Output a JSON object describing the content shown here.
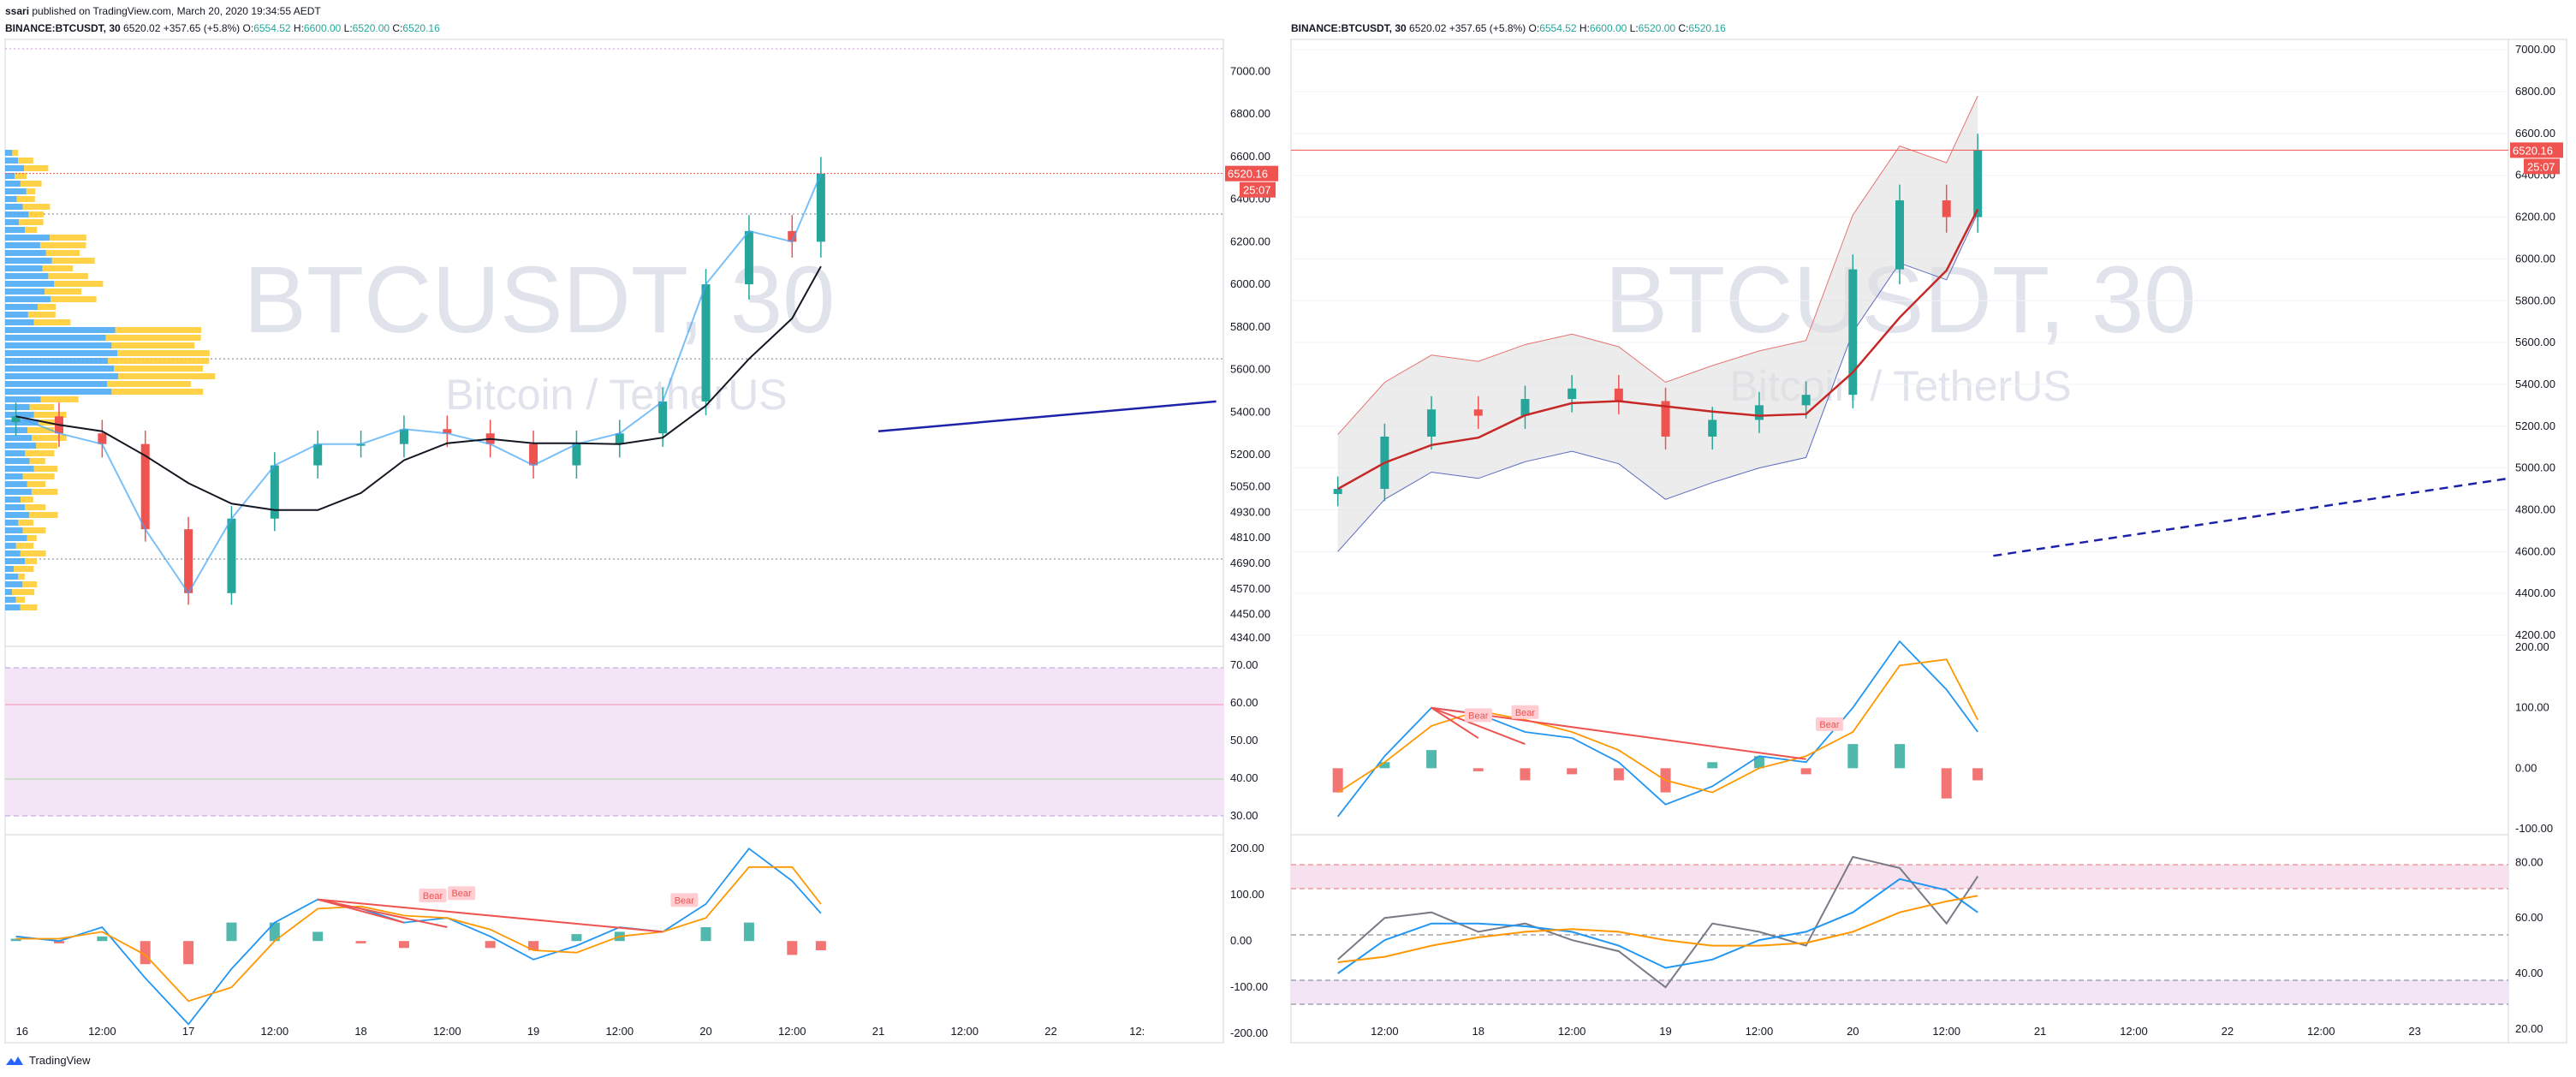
{
  "publish_line": {
    "author": "ssari",
    "text": "published on TradingView.com, March 20, 2020 19:34:55 AEDT"
  },
  "brand": {
    "name": "TradingView",
    "icon": "tradingview-logo-icon"
  },
  "colors": {
    "up": "#26a69a",
    "down": "#ef5350",
    "price_tag": "#ef5350",
    "ma_black": "#131722",
    "trend_blue": "#1e22aa",
    "macd_line": "#2196f3",
    "signal_line": "#ff9800",
    "rsi_band": "#f3e5f5",
    "bb_fill": "#e0e0e0",
    "volume_profile_up": "#42a5f5",
    "volume_profile_down": "#ffca28"
  },
  "left_panel": {
    "header": {
      "symbol": "BINANCE:BTCUSDT, 30",
      "last": "6520.02",
      "change": "+357.65 (+5.8%)",
      "ohlc": [
        {
          "label": "O:",
          "value": "6554.52"
        },
        {
          "label": "H:",
          "value": "6600.00"
        },
        {
          "label": "L:",
          "value": "6520.00"
        },
        {
          "label": "C:",
          "value": "6520.16"
        }
      ]
    },
    "watermark": {
      "title": "BTCUSDT, 30",
      "subtitle": "Bitcoin / TetherUS"
    },
    "price_tag": "6520.16",
    "countdown": "25:07",
    "price_axis": [
      "7000.00",
      "6800.00",
      "6600.00",
      "6400.00",
      "6200.00",
      "6000.00",
      "5800.00",
      "5600.00",
      "5400.00",
      "5200.00",
      "5050.00",
      "4930.00",
      "4810.00",
      "4690.00",
      "4570.00",
      "4450.00",
      "4340.00"
    ],
    "rsi_axis": [
      "70.00",
      "60.00",
      "50.00",
      "40.00",
      "30.00"
    ],
    "macd_axis": [
      "200.00",
      "100.00",
      "0.00",
      "-100.00",
      "-200.00"
    ],
    "time_axis": [
      "16",
      "12:00",
      "17",
      "12:00",
      "18",
      "12:00",
      "19",
      "12:00",
      "20",
      "12:00",
      "21",
      "12:00",
      "22",
      "12:"
    ],
    "divergence_labels": [
      "Bear",
      "Bear",
      "Bear"
    ]
  },
  "right_panel": {
    "header": {
      "symbol": "BINANCE:BTCUSDT, 30",
      "last": "6520.02",
      "change": "+357.65 (+5.8%)",
      "ohlc": [
        {
          "label": "O:",
          "value": "6554.52"
        },
        {
          "label": "H:",
          "value": "6600.00"
        },
        {
          "label": "L:",
          "value": "6520.00"
        },
        {
          "label": "C:",
          "value": "6520.16"
        }
      ]
    },
    "watermark": {
      "title": "BTCUSDT, 30",
      "subtitle": "Bitcoin / TetherUS"
    },
    "price_tag": "6520.16",
    "countdown": "25:07",
    "price_axis": [
      "7000.00",
      "6800.00",
      "6600.00",
      "6400.00",
      "6200.00",
      "6000.00",
      "5800.00",
      "5600.00",
      "5400.00",
      "5200.00",
      "5000.00",
      "4800.00",
      "4600.00",
      "4400.00",
      "4200.00"
    ],
    "macd_axis": [
      "200.00",
      "100.00",
      "0.00",
      "-100.00"
    ],
    "rsi_axis": [
      "80.00",
      "60.00",
      "40.00",
      "20.00"
    ],
    "time_axis": [
      "12:00",
      "18",
      "12:00",
      "19",
      "12:00",
      "20",
      "12:00",
      "21",
      "12:00",
      "22",
      "12:00",
      "23"
    ],
    "divergence_labels": [
      "Bear",
      "Bear",
      "Bear"
    ]
  },
  "chart_data": [
    {
      "type": "candlestick",
      "panel": "left",
      "title": "BINANCE:BTCUSDT, 30",
      "interval_minutes": 30,
      "x": [
        "2020-03-16 00:00",
        "2020-03-16 06:00",
        "2020-03-16 12:00",
        "2020-03-16 18:00",
        "2020-03-17 00:00",
        "2020-03-17 06:00",
        "2020-03-17 12:00",
        "2020-03-17 18:00",
        "2020-03-18 00:00",
        "2020-03-18 06:00",
        "2020-03-18 12:00",
        "2020-03-18 18:00",
        "2020-03-19 00:00",
        "2020-03-19 06:00",
        "2020-03-19 12:00",
        "2020-03-19 18:00",
        "2020-03-20 00:00",
        "2020-03-20 06:00",
        "2020-03-20 12:00",
        "2020-03-20 16:00"
      ],
      "close": [
        5380,
        5300,
        5250,
        4850,
        4550,
        4900,
        5150,
        5250,
        5250,
        5320,
        5300,
        5250,
        5150,
        5250,
        5300,
        5450,
        6000,
        6250,
        6200,
        6520
      ],
      "ylim": [
        4340,
        7000
      ],
      "price_line": 6520.16,
      "trend_line": {
        "start": [
          "2020-03-21 00:00",
          5310
        ],
        "end": [
          "2020-03-22 23:00",
          5450
        ]
      },
      "horizontal_lines": [
        6330,
        5650,
        4710
      ]
    },
    {
      "type": "line",
      "panel": "left-rsi",
      "series": [],
      "ylim": [
        25,
        75
      ],
      "band": [
        30,
        70
      ],
      "reference_lines": [
        60,
        40
      ]
    },
    {
      "type": "line",
      "panel": "left-macd",
      "ylim": [
        -220,
        230
      ],
      "series": [
        {
          "x": [
            "2020-03-16 00:00",
            "2020-03-16 06:00",
            "2020-03-16 12:00",
            "2020-03-16 18:00",
            "2020-03-17 00:00",
            "2020-03-17 06:00",
            "2020-03-17 12:00",
            "2020-03-17 18:00",
            "2020-03-18 00:00",
            "2020-03-18 06:00",
            "2020-03-18 12:00",
            "2020-03-18 18:00",
            "2020-03-19 00:00",
            "2020-03-19 06:00",
            "2020-03-19 12:00",
            "2020-03-19 18:00",
            "2020-03-20 00:00",
            "2020-03-20 06:00",
            "2020-03-20 12:00",
            "2020-03-20 16:00"
          ],
          "values": [
            10,
            0,
            30,
            -80,
            -180,
            -60,
            40,
            90,
            70,
            40,
            50,
            10,
            -40,
            -10,
            30,
            20,
            80,
            200,
            130,
            60
          ]
        },
        {
          "x": [
            "2020-03-16 00:00",
            "2020-03-16 06:00",
            "2020-03-16 12:00",
            "2020-03-16 18:00",
            "2020-03-17 00:00",
            "2020-03-17 06:00",
            "2020-03-17 12:00",
            "2020-03-17 18:00",
            "2020-03-18 00:00",
            "2020-03-18 06:00",
            "2020-03-18 12:00",
            "2020-03-18 18:00",
            "2020-03-19 00:00",
            "2020-03-19 06:00",
            "2020-03-19 12:00",
            "2020-03-19 18:00",
            "2020-03-20 00:00",
            "2020-03-20 06:00",
            "2020-03-20 12:00",
            "2020-03-20 16:00"
          ],
          "values": [
            5,
            5,
            20,
            -30,
            -130,
            -100,
            0,
            70,
            75,
            55,
            50,
            25,
            -20,
            -25,
            10,
            20,
            50,
            160,
            160,
            80
          ]
        }
      ]
    },
    {
      "type": "candlestick",
      "panel": "right",
      "title": "BINANCE:BTCUSDT, 30",
      "interval_minutes": 30,
      "x": [
        "2020-03-17 06:00",
        "2020-03-17 12:00",
        "2020-03-17 18:00",
        "2020-03-18 00:00",
        "2020-03-18 06:00",
        "2020-03-18 12:00",
        "2020-03-18 18:00",
        "2020-03-19 00:00",
        "2020-03-19 06:00",
        "2020-03-19 12:00",
        "2020-03-19 18:00",
        "2020-03-20 00:00",
        "2020-03-20 06:00",
        "2020-03-20 12:00",
        "2020-03-20 16:00"
      ],
      "close": [
        4900,
        5150,
        5280,
        5250,
        5330,
        5380,
        5320,
        5150,
        5230,
        5300,
        5350,
        5950,
        6280,
        6200,
        6520
      ],
      "ylim": [
        4200,
        7050
      ],
      "price_line": 6520.16,
      "trend_line": {
        "start": [
          "2020-03-20 18:00",
          4580
        ],
        "end": [
          "2020-03-23 12:00",
          4950
        ]
      }
    },
    {
      "type": "line",
      "panel": "right-macd",
      "ylim": [
        -110,
        220
      ],
      "series": [
        {
          "x": [
            "2020-03-17 06:00",
            "2020-03-17 12:00",
            "2020-03-17 18:00",
            "2020-03-18 00:00",
            "2020-03-18 06:00",
            "2020-03-18 12:00",
            "2020-03-18 18:00",
            "2020-03-19 00:00",
            "2020-03-19 06:00",
            "2020-03-19 12:00",
            "2020-03-19 18:00",
            "2020-03-20 00:00",
            "2020-03-20 06:00",
            "2020-03-20 12:00",
            "2020-03-20 16:00"
          ],
          "values": [
            -80,
            20,
            100,
            90,
            60,
            50,
            10,
            -60,
            -30,
            20,
            10,
            100,
            210,
            130,
            60
          ]
        },
        {
          "x": [
            "2020-03-17 06:00",
            "2020-03-17 12:00",
            "2020-03-17 18:00",
            "2020-03-18 00:00",
            "2020-03-18 06:00",
            "2020-03-18 12:00",
            "2020-03-18 18:00",
            "2020-03-19 00:00",
            "2020-03-19 06:00",
            "2020-03-19 12:00",
            "2020-03-19 18:00",
            "2020-03-20 00:00",
            "2020-03-20 06:00",
            "2020-03-20 12:00",
            "2020-03-20 16:00"
          ],
          "values": [
            -40,
            10,
            70,
            95,
            80,
            60,
            30,
            -20,
            -40,
            0,
            20,
            60,
            170,
            180,
            80
          ]
        }
      ]
    },
    {
      "type": "line",
      "panel": "right-rsi",
      "ylim": [
        15,
        90
      ],
      "band_upper": [
        70,
        80
      ],
      "band_lower": [
        20,
        30
      ],
      "series": [
        {
          "x": [
            "2020-03-17 06:00",
            "2020-03-17 12:00",
            "2020-03-17 18:00",
            "2020-03-18 00:00",
            "2020-03-18 06:00",
            "2020-03-18 12:00",
            "2020-03-18 18:00",
            "2020-03-19 00:00",
            "2020-03-19 06:00",
            "2020-03-19 12:00",
            "2020-03-19 18:00",
            "2020-03-20 00:00",
            "2020-03-20 06:00",
            "2020-03-20 12:00",
            "2020-03-20 16:00"
          ],
          "values": [
            45,
            60,
            62,
            55,
            58,
            52,
            48,
            35,
            58,
            55,
            50,
            82,
            78,
            58,
            75
          ]
        },
        {
          "x": [
            "2020-03-17 06:00",
            "2020-03-17 12:00",
            "2020-03-17 18:00",
            "2020-03-18 00:00",
            "2020-03-18 06:00",
            "2020-03-18 12:00",
            "2020-03-18 18:00",
            "2020-03-19 00:00",
            "2020-03-19 06:00",
            "2020-03-19 12:00",
            "2020-03-19 18:00",
            "2020-03-20 00:00",
            "2020-03-20 06:00",
            "2020-03-20 12:00",
            "2020-03-20 16:00"
          ],
          "values": [
            40,
            52,
            58,
            58,
            57,
            55,
            50,
            42,
            45,
            52,
            55,
            62,
            74,
            70,
            62
          ]
        },
        {
          "x": [
            "2020-03-17 06:00",
            "2020-03-17 12:00",
            "2020-03-17 18:00",
            "2020-03-18 00:00",
            "2020-03-18 06:00",
            "2020-03-18 12:00",
            "2020-03-18 18:00",
            "2020-03-19 00:00",
            "2020-03-19 06:00",
            "2020-03-19 12:00",
            "2020-03-19 18:00",
            "2020-03-20 00:00",
            "2020-03-20 06:00",
            "2020-03-20 12:00",
            "2020-03-20 16:00"
          ],
          "values": [
            44,
            46,
            50,
            53,
            55,
            56,
            55,
            52,
            50,
            50,
            51,
            55,
            62,
            66,
            68
          ]
        }
      ]
    }
  ]
}
